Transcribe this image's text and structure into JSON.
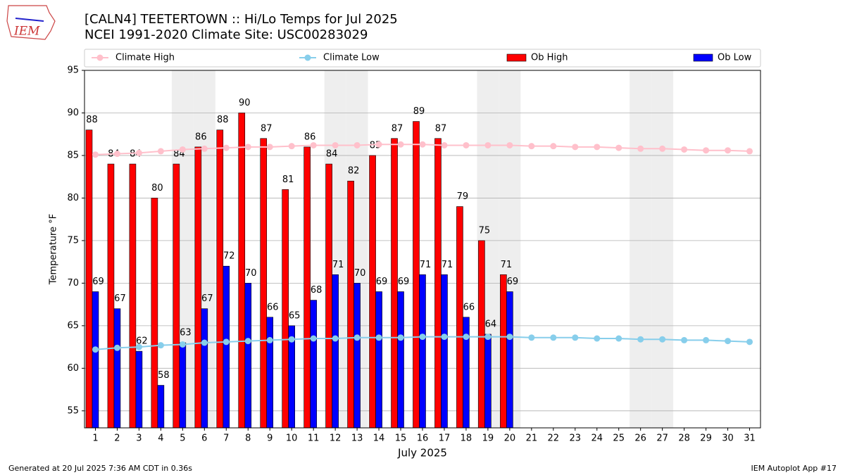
{
  "logo_text": "IEM",
  "chart_data": {
    "type": "bar_line",
    "title": "[CALN4] TEETERTOWN :: Hi/Lo Temps for Jul 2025",
    "subtitle": "NCEI 1991-2020 Climate Site: USC00283029",
    "x_label": "July 2025",
    "y_label": "Temperature °F",
    "categories": [
      1,
      2,
      3,
      4,
      5,
      6,
      7,
      8,
      9,
      10,
      11,
      12,
      13,
      14,
      15,
      16,
      17,
      18,
      19,
      20,
      21,
      22,
      23,
      24,
      25,
      26,
      27,
      28,
      29,
      30,
      31
    ],
    "series": [
      {
        "name": "Climate High",
        "kind": "line",
        "color": "#ffc0cb",
        "values": [
          85.1,
          85.2,
          85.3,
          85.5,
          85.7,
          85.8,
          85.9,
          86.0,
          86.0,
          86.1,
          86.2,
          86.2,
          86.2,
          86.3,
          86.3,
          86.3,
          86.2,
          86.2,
          86.2,
          86.2,
          86.1,
          86.1,
          86.0,
          86.0,
          85.9,
          85.8,
          85.8,
          85.7,
          85.6,
          85.6,
          85.5
        ]
      },
      {
        "name": "Climate Low",
        "kind": "line",
        "color": "#87ceeb",
        "values": [
          62.2,
          62.4,
          62.5,
          62.7,
          62.8,
          63.0,
          63.1,
          63.2,
          63.3,
          63.4,
          63.5,
          63.5,
          63.6,
          63.6,
          63.6,
          63.7,
          63.7,
          63.7,
          63.7,
          63.7,
          63.6,
          63.6,
          63.6,
          63.5,
          63.5,
          63.4,
          63.4,
          63.3,
          63.3,
          63.2,
          63.1
        ]
      },
      {
        "name": "Ob High",
        "kind": "bar",
        "color": "#ff0000",
        "values": [
          88,
          84,
          84,
          80,
          84,
          86,
          88,
          90,
          87,
          81,
          86,
          84,
          82,
          85,
          87,
          89,
          87,
          79,
          75,
          71,
          null,
          null,
          null,
          null,
          null,
          null,
          null,
          null,
          null,
          null,
          null
        ]
      },
      {
        "name": "Ob Low",
        "kind": "bar",
        "color": "#0000ff",
        "values": [
          69,
          67,
          62,
          58,
          63,
          67,
          72,
          70,
          66,
          65,
          68,
          71,
          70,
          69,
          69,
          71,
          71,
          66,
          64,
          69,
          null,
          null,
          null,
          null,
          null,
          null,
          null,
          null,
          null,
          null,
          null
        ]
      }
    ],
    "ylim": [
      53,
      95
    ],
    "yticks": [
      55,
      60,
      65,
      70,
      75,
      80,
      85,
      90,
      95
    ],
    "grid": true,
    "shaded_days": [
      5,
      6,
      12,
      13,
      19,
      20,
      26,
      27
    ],
    "footer_left": "Generated at 20 Jul 2025 7:36 AM CDT in 0.36s",
    "footer_right": "IEM Autoplot App #17"
  }
}
